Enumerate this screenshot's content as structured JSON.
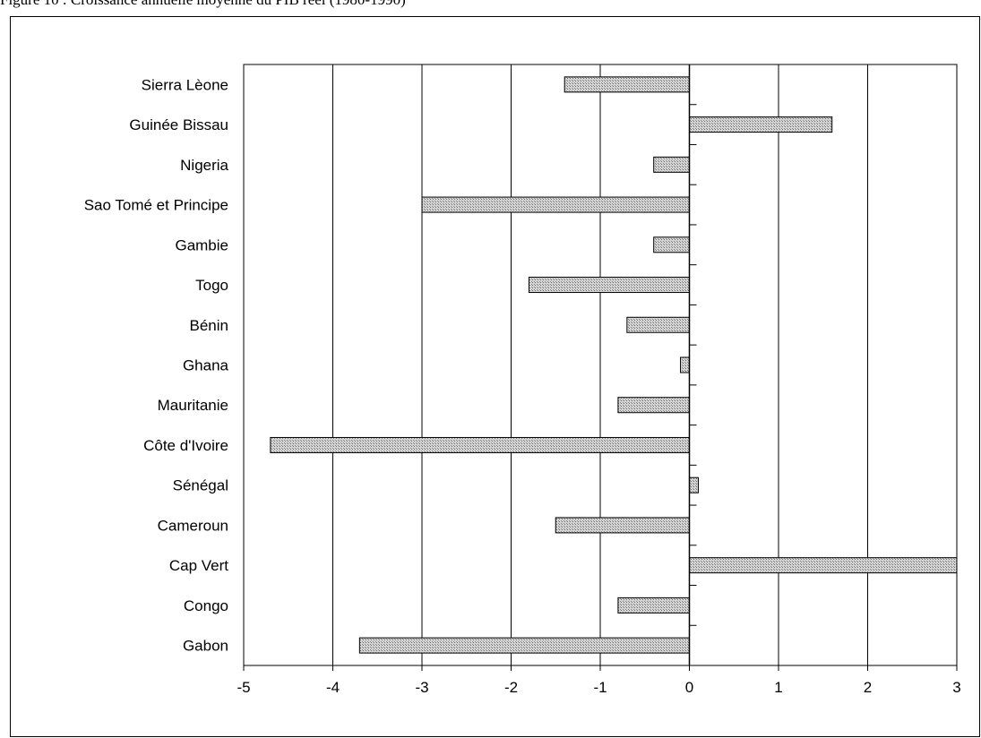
{
  "figure": {
    "caption": "Figure 10 : Croissance annuelle moyenne du PIB réel (1980-1990)"
  },
  "chart_data": {
    "type": "bar",
    "orientation": "horizontal",
    "title": "",
    "xlabel": "",
    "ylabel": "",
    "xlim": [
      -5,
      3
    ],
    "xticks": [
      -5,
      -4,
      -3,
      -2,
      -1,
      0,
      1,
      2,
      3
    ],
    "grid": "vertical",
    "bar_color": "#b0b0b0",
    "categories": [
      "Sierra Lèone",
      "Guinée Bissau",
      "Nigeria",
      "Sao Tomé et Principe",
      "Gambie",
      "Togo",
      "Bénin",
      "Ghana",
      "Mauritanie",
      "Côte d'Ivoire",
      "Sénégal",
      "Cameroun",
      "Cap Vert",
      "Congo",
      "Gabon"
    ],
    "values": [
      -1.4,
      1.6,
      -0.4,
      -3.0,
      -0.4,
      -1.8,
      -0.7,
      -0.1,
      -0.8,
      -4.7,
      0.1,
      -1.5,
      3.0,
      -0.8,
      -3.7
    ]
  }
}
